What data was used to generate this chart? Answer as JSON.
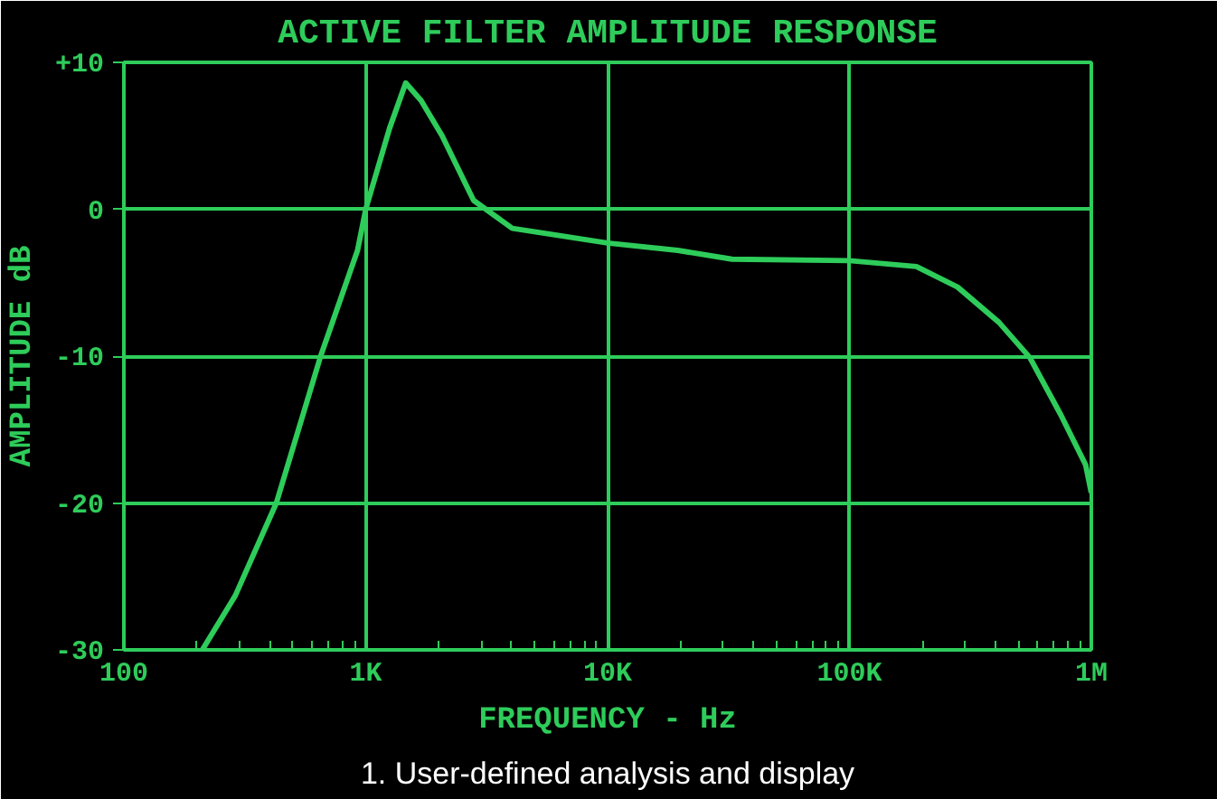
{
  "chart_data": {
    "type": "line",
    "title": "ACTIVE FILTER AMPLITUDE RESPONSE",
    "xlabel": "FREQUENCY - Hz",
    "ylabel": "AMPLITUDE dB",
    "log": "x",
    "grid": true,
    "marker": "none",
    "line_style": "solid",
    "x": [
      211,
      289,
      427,
      651,
      925,
      1000,
      1254,
      1463,
      1694,
      2069,
      2793,
      4035,
      10000,
      19500,
      32700,
      100000,
      189000,
      280000,
      415000,
      557000,
      748000,
      947000,
      1000000
    ],
    "series": [
      {
        "color": "#2ecc5a",
        "values": [
          -30,
          -26.3,
          -20,
          -10,
          -2.8,
          0,
          5.5,
          8.6,
          7.4,
          5.0,
          0.6,
          -1.3,
          -2.3,
          -2.8,
          -3.4,
          -3.5,
          -3.9,
          -5.3,
          -7.7,
          -10.1,
          -14,
          -17.4,
          -19.3
        ]
      }
    ],
    "xlim": [
      100,
      1000000
    ],
    "xticks": [
      {
        "value": 100,
        "label": "100"
      },
      {
        "value": 1000,
        "label": "1K"
      },
      {
        "value": 10000,
        "label": "10K"
      },
      {
        "value": 100000,
        "label": "100K"
      },
      {
        "value": 1000000,
        "label": "1M"
      }
    ],
    "ylim": [
      -30,
      10
    ],
    "yticks": [
      {
        "value": 10,
        "label": "+10"
      },
      0,
      -10,
      -20,
      -30
    ],
    "annotations": [
      "1. User-defined analysis and display"
    ]
  }
}
